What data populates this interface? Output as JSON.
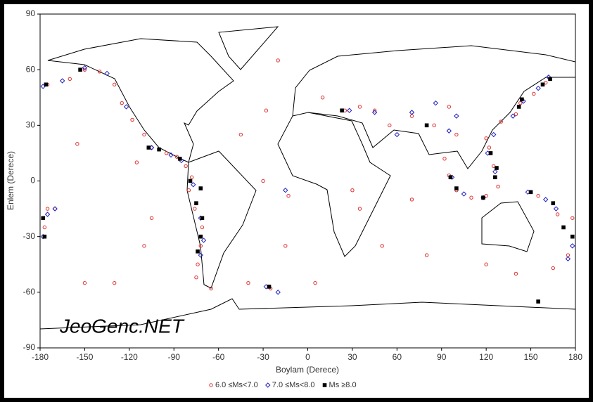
{
  "chart_data": {
    "type": "scatter",
    "xlabel": "Boylam (Derece)",
    "ylabel": "Enlem (Derece)",
    "watermark": "JeoGenc.NET",
    "xlim": [
      -180,
      180
    ],
    "ylim": [
      -90,
      90
    ],
    "xticks": [
      -180,
      -150,
      -120,
      -90,
      -60,
      -30,
      0,
      30,
      60,
      90,
      120,
      150,
      180
    ],
    "yticks": [
      -90,
      -60,
      -30,
      0,
      30,
      60,
      90
    ],
    "series": [
      {
        "name": "6.0 ≤Ms<7.0",
        "color": "#e03030",
        "marker": "circle",
        "x": [
          -175,
          -160,
          -150,
          -140,
          -130,
          -125,
          -118,
          -110,
          -105,
          -95,
          -88,
          -82,
          -78,
          -80,
          -76,
          -71,
          -72,
          -74,
          -75,
          -65,
          -40,
          -25,
          -15,
          -13,
          -30,
          -45,
          -28,
          -20,
          10,
          25,
          35,
          45,
          55,
          70,
          85,
          95,
          100,
          92,
          95,
          100,
          110,
          120,
          128,
          125,
          122,
          120,
          130,
          140,
          143,
          152,
          160,
          150,
          155,
          165,
          168,
          178,
          -177,
          -175,
          175,
          165,
          -170,
          -155,
          -130,
          -110,
          -105,
          -115,
          -150,
          50,
          70,
          80,
          30,
          35,
          120,
          140,
          5
        ],
        "values": [
          52,
          55,
          60,
          59,
          52,
          42,
          33,
          25,
          18,
          15,
          13,
          8,
          2,
          -5,
          -15,
          -25,
          -35,
          -45,
          -52,
          -58,
          -55,
          -58,
          -35,
          -8,
          0,
          25,
          38,
          65,
          45,
          38,
          40,
          38,
          30,
          35,
          30,
          40,
          25,
          12,
          3,
          -5,
          -9,
          -8,
          -3,
          8,
          18,
          23,
          32,
          36,
          42,
          47,
          53,
          -6,
          -8,
          -12,
          -18,
          -20,
          -25,
          -15,
          -40,
          -47,
          -15,
          20,
          -55,
          -35,
          -20,
          10,
          -55,
          -35,
          -10,
          -40,
          -5,
          -15,
          -45,
          -50,
          -55
        ]
      },
      {
        "name": "7.0 ≤Ms<8.0",
        "color": "#2020c0",
        "marker": "diamond",
        "x": [
          -178,
          -165,
          -150,
          -135,
          -122,
          -105,
          -92,
          -85,
          -77,
          -72,
          -70,
          -72,
          -178,
          -175,
          -28,
          -20,
          45,
          70,
          95,
          100,
          97,
          105,
          118,
          126,
          121,
          125,
          138,
          145,
          155,
          162,
          148,
          160,
          167,
          178,
          175,
          -170,
          28,
          60,
          86,
          -15
        ],
        "values": [
          51,
          54,
          61,
          58,
          40,
          18,
          14,
          11,
          -2,
          -20,
          -32,
          -40,
          -30,
          -18,
          -57,
          -60,
          37,
          37,
          27,
          35,
          2,
          -7,
          -9,
          5,
          15,
          25,
          35,
          43,
          50,
          56,
          -6,
          -10,
          -15,
          -35,
          -42,
          -15,
          38,
          25,
          42,
          -5
        ]
      },
      {
        "name": "Ms ≥8.0",
        "color": "#000000",
        "marker": "square",
        "x": [
          -176,
          -153,
          -107,
          -100,
          -86,
          -79,
          -75,
          -71,
          -72,
          -74,
          -178,
          -177,
          -26,
          96,
          100,
          118,
          126,
          123,
          142,
          144,
          158,
          163,
          150,
          165,
          172,
          155,
          -72,
          127,
          23,
          80,
          178
        ],
        "values": [
          52,
          60,
          18,
          17,
          12,
          0,
          -12,
          -20,
          -30,
          -38,
          -20,
          -30,
          -57,
          2,
          -4,
          -9,
          2,
          15,
          40,
          44,
          52,
          55,
          -6,
          -12,
          -25,
          -65,
          -4,
          7,
          38,
          30,
          -30
        ]
      }
    ]
  }
}
